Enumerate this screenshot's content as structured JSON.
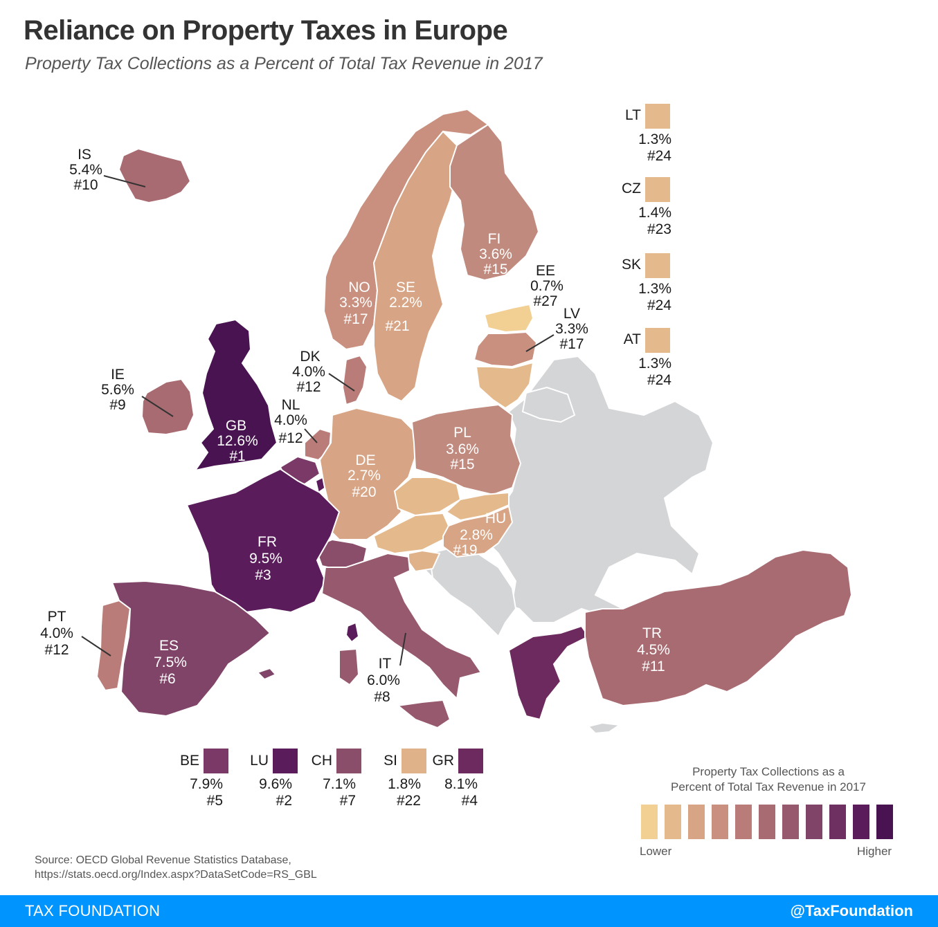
{
  "header": {
    "title": "Reliance on Property Taxes in Europe",
    "subtitle": "Property Tax Collections as a Percent of Total Tax Revenue in 2017"
  },
  "colors": {
    "no_data": "#d4d5d7",
    "scale": [
      "#f2cf92",
      "#e4b98c",
      "#d7a585",
      "#c9907f",
      "#b97c78",
      "#a86b72",
      "#96596d",
      "#7f4467",
      "#6d3061",
      "#5a1c5a",
      "#481350"
    ]
  },
  "countries": {
    "IS": {
      "code": "IS",
      "pct": "5.4%",
      "rank": "#10",
      "color": "#a86b72"
    },
    "IE": {
      "code": "IE",
      "pct": "5.6%",
      "rank": "#9",
      "color": "#a86b72"
    },
    "GB": {
      "code": "GB",
      "pct": "12.6%",
      "rank": "#1",
      "color": "#481350"
    },
    "NO": {
      "code": "NO",
      "pct": "3.3%",
      "rank": "#17",
      "color": "#c9907f"
    },
    "SE": {
      "code": "SE",
      "pct": "2.2%",
      "rank": "#21",
      "color": "#d7a585"
    },
    "FI": {
      "code": "FI",
      "pct": "3.6%",
      "rank": "#15",
      "color": "#c08a7e"
    },
    "EE": {
      "code": "EE",
      "pct": "0.7%",
      "rank": "#27",
      "color": "#f2cf92"
    },
    "LV": {
      "code": "LV",
      "pct": "3.3%",
      "rank": "#17",
      "color": "#c9907f"
    },
    "LT": {
      "code": "LT",
      "pct": "1.3%",
      "rank": "#24",
      "color": "#e4b98c"
    },
    "DK": {
      "code": "DK",
      "pct": "4.0%",
      "rank": "#12",
      "color": "#b97c78"
    },
    "NL": {
      "code": "NL",
      "pct": "4.0%",
      "rank": "#12",
      "color": "#b97c78"
    },
    "BE": {
      "code": "BE",
      "pct": "7.9%",
      "rank": "#5",
      "color": "#7a3966"
    },
    "LU": {
      "code": "LU",
      "pct": "9.6%",
      "rank": "#2",
      "color": "#5a1c5a"
    },
    "DE": {
      "code": "DE",
      "pct": "2.7%",
      "rank": "#20",
      "color": "#d7a585"
    },
    "PL": {
      "code": "PL",
      "pct": "3.6%",
      "rank": "#15",
      "color": "#c08a7e"
    },
    "CZ": {
      "code": "CZ",
      "pct": "1.4%",
      "rank": "#23",
      "color": "#e4b98c"
    },
    "SK": {
      "code": "SK",
      "pct": "1.3%",
      "rank": "#24",
      "color": "#e4b98c"
    },
    "AT": {
      "code": "AT",
      "pct": "1.3%",
      "rank": "#24",
      "color": "#e4b98c"
    },
    "HU": {
      "code": "HU",
      "pct": "2.8%",
      "rank": "#19",
      "color": "#d7a585"
    },
    "SI": {
      "code": "SI",
      "pct": "1.8%",
      "rank": "#22",
      "color": "#e0b289"
    },
    "CH": {
      "code": "CH",
      "pct": "7.1%",
      "rank": "#7",
      "color": "#8b4e6a"
    },
    "FR": {
      "code": "FR",
      "pct": "9.5%",
      "rank": "#3",
      "color": "#5a1c5a"
    },
    "PT": {
      "code": "PT",
      "pct": "4.0%",
      "rank": "#12",
      "color": "#b97c78"
    },
    "ES": {
      "code": "ES",
      "pct": "7.5%",
      "rank": "#6",
      "color": "#7f4467"
    },
    "IT": {
      "code": "IT",
      "pct": "6.0%",
      "rank": "#8",
      "color": "#96596d"
    },
    "GR": {
      "code": "GR",
      "pct": "8.1%",
      "rank": "#4",
      "color": "#6d2a5e"
    },
    "TR": {
      "code": "TR",
      "pct": "4.5%",
      "rank": "#11",
      "color": "#a86b72"
    }
  },
  "scale_legend": {
    "title_line1": "Property Tax Collections as a",
    "title_line2": "Percent of Total Tax Revenue in 2017",
    "low_label": "Lower",
    "high_label": "Higher"
  },
  "source": {
    "line1": "Source: OECD Global Revenue Statistics Database,",
    "line2": "https://stats.oecd.org/Index.aspx?DataSetCode=RS_GBL"
  },
  "footer": {
    "left": "TAX FOUNDATION",
    "right": "@TaxFoundation"
  }
}
